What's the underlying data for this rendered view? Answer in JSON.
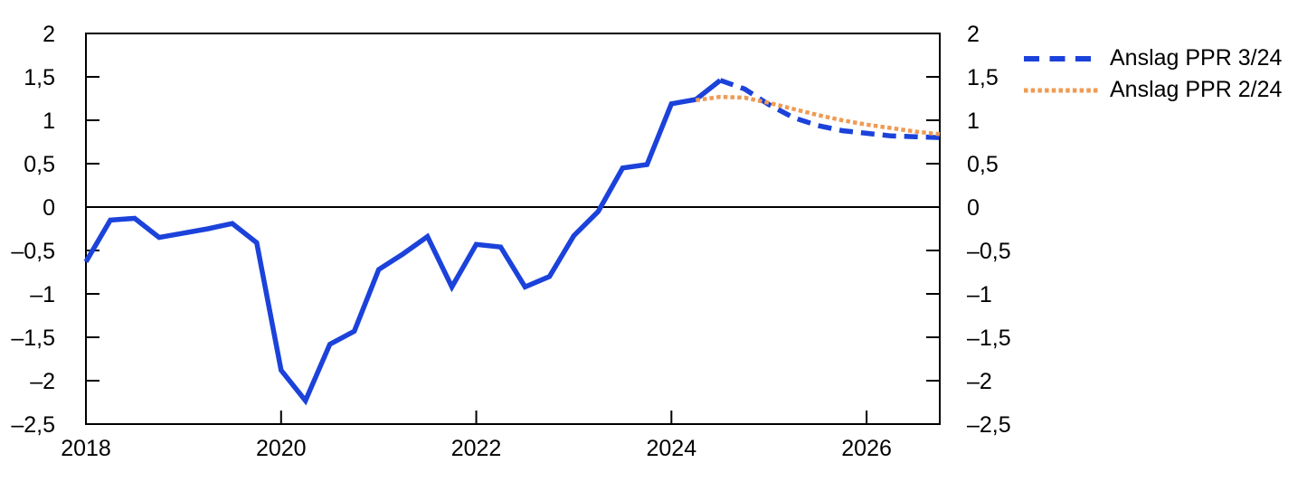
{
  "chart_data": {
    "type": "line",
    "title": "",
    "xlabel": "",
    "ylabel": "",
    "grid": false,
    "zero_line": true,
    "x_axis": {
      "range": [
        2018,
        2026.75
      ],
      "ticks": [
        {
          "value": 2018,
          "label": "2018"
        },
        {
          "value": 2020,
          "label": "2020"
        },
        {
          "value": 2022,
          "label": "2022"
        },
        {
          "value": 2024,
          "label": "2024"
        },
        {
          "value": 2026,
          "label": "2026"
        }
      ]
    },
    "y_axis": {
      "range": [
        -2.5,
        2
      ],
      "shown_on": "both-sides",
      "ticks": [
        {
          "value": 2,
          "label": "2"
        },
        {
          "value": 1.5,
          "label": "1,5"
        },
        {
          "value": 1,
          "label": "1"
        },
        {
          "value": 0.5,
          "label": "0,5"
        },
        {
          "value": 0,
          "label": "0"
        },
        {
          "value": -0.5,
          "label": "–0,5"
        },
        {
          "value": -1,
          "label": "–1"
        },
        {
          "value": -1.5,
          "label": "–1,5"
        },
        {
          "value": -2,
          "label": "–2"
        },
        {
          "value": -2.5,
          "label": "–2,5"
        }
      ]
    },
    "series": [
      {
        "id": "historical",
        "style": "solid",
        "color": "#1b42da",
        "x": [
          2018,
          2018.25,
          2018.5,
          2018.75,
          2019,
          2019.25,
          2019.5,
          2019.75,
          2020,
          2020.25,
          2020.5,
          2020.75,
          2021,
          2021.25,
          2021.5,
          2021.75,
          2022,
          2022.25,
          2022.5,
          2022.75,
          2023,
          2023.25,
          2023.5,
          2023.75,
          2024,
          2024.25,
          2024.5
        ],
        "values": [
          -0.63,
          -0.15,
          -0.13,
          -0.35,
          -0.3,
          -0.25,
          -0.19,
          -0.41,
          -1.88,
          -2.23,
          -1.58,
          -1.43,
          -0.72,
          -0.54,
          -0.34,
          -0.92,
          -0.43,
          -0.46,
          -0.92,
          -0.8,
          -0.33,
          -0.05,
          0.45,
          0.49,
          1.19,
          1.24,
          1.46
        ]
      },
      {
        "id": "anslag-ppr-3-24",
        "legend_label": "Anslag PPR 3/24",
        "style": "dashed",
        "color": "#1b42da",
        "x": [
          2024.5,
          2024.75,
          2025,
          2025.25,
          2025.5,
          2025.75,
          2026,
          2026.25,
          2026.5,
          2026.75
        ],
        "values": [
          1.46,
          1.36,
          1.18,
          1.03,
          0.94,
          0.88,
          0.85,
          0.82,
          0.81,
          0.8
        ]
      },
      {
        "id": "anslag-ppr-2-24",
        "legend_label": "Anslag PPR 2/24",
        "style": "dotted",
        "color": "#ee9b55",
        "x": [
          2024.25,
          2024.5,
          2024.75,
          2025,
          2025.25,
          2025.5,
          2025.75,
          2026,
          2026.25,
          2026.5,
          2026.75
        ],
        "values": [
          1.23,
          1.27,
          1.26,
          1.2,
          1.13,
          1.06,
          1.0,
          0.95,
          0.91,
          0.87,
          0.84
        ]
      }
    ],
    "legend": {
      "position": "top-right",
      "entries": [
        {
          "label": "Anslag PPR 3/24",
          "style": "dashed",
          "color": "#1b42da"
        },
        {
          "label": "Anslag PPR 2/24",
          "style": "dotted",
          "color": "#ee9b55"
        }
      ]
    }
  },
  "colors": {
    "axis": "#000000",
    "text": "#000000",
    "background": "#ffffff",
    "line_blue": "#1b42da",
    "line_orange": "#ee9b55"
  }
}
